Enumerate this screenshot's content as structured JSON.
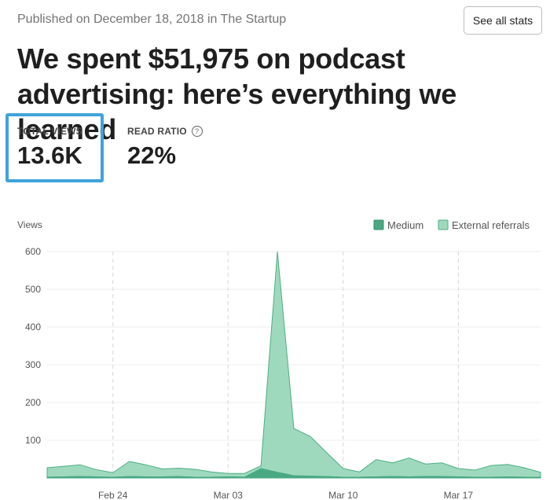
{
  "header": {
    "published": "Published on December 18, 2018 in The Startup",
    "see_all_label": "See all stats",
    "title": "We spent $51,975 on podcast advertising: here’s everything we learned"
  },
  "stats": {
    "total_views_label": "TOTAL VIEWS",
    "total_views_value": "13.6K",
    "read_ratio_label": "READ RATIO",
    "read_ratio_value": "22%",
    "help_icon": "?"
  },
  "colors": {
    "medium": "#48a983",
    "external": "#9fd9bd",
    "external_stroke": "#4caf85",
    "highlight": "#3fa3db"
  },
  "chart_data": {
    "type": "area",
    "ylabel": "Views",
    "ylim": [
      0,
      600
    ],
    "yticks": [
      100,
      200,
      300,
      400,
      500,
      600
    ],
    "x_tick_labels": [
      "Feb 24",
      "Mar 03",
      "Mar 10",
      "Mar 17"
    ],
    "x_tick_index": [
      4,
      11,
      18,
      25
    ],
    "stacked": true,
    "legend": [
      "Medium",
      "External referrals"
    ],
    "legend_position": "top-right",
    "series": [
      {
        "name": "Medium",
        "values": [
          2,
          3,
          4,
          3,
          2,
          4,
          3,
          3,
          4,
          2,
          2,
          3,
          2,
          25,
          15,
          6,
          5,
          4,
          2,
          2,
          3,
          4,
          3,
          4,
          4,
          3,
          2,
          2,
          3,
          2,
          2
        ]
      },
      {
        "name": "External referrals",
        "values": [
          25,
          28,
          31,
          19,
          12,
          40,
          32,
          21,
          22,
          21,
          14,
          9,
          10,
          7,
          585,
          125,
          105,
          63,
          23,
          14,
          46,
          36,
          50,
          33,
          36,
          22,
          19,
          31,
          33,
          25,
          13
        ]
      }
    ]
  }
}
